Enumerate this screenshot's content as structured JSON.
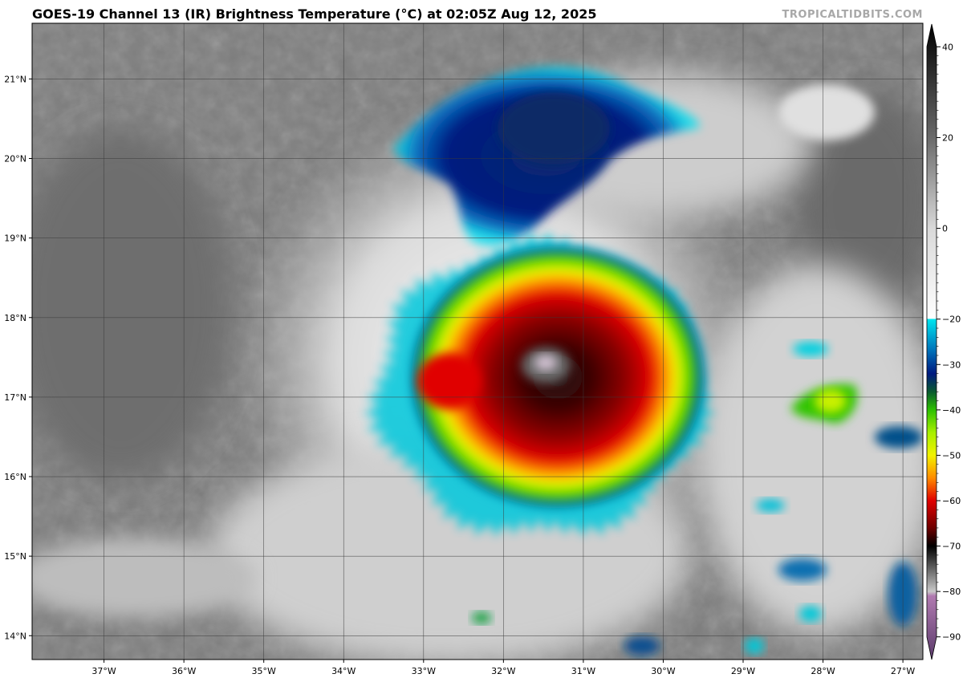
{
  "header": {
    "title": "GOES-19 Channel 13 (IR) Brightness Temperature (°C) at 02:05Z Aug 12, 2025",
    "credit": "TROPICALTIDBITS.COM"
  },
  "map": {
    "lon_range": [
      -37.9,
      -26.75
    ],
    "lat_range": [
      13.7,
      21.7
    ],
    "lon_ticks": [
      {
        "value": -37,
        "label": "37°W"
      },
      {
        "value": -36,
        "label": "36°W"
      },
      {
        "value": -35,
        "label": "35°W"
      },
      {
        "value": -34,
        "label": "34°W"
      },
      {
        "value": -33,
        "label": "33°W"
      },
      {
        "value": -32,
        "label": "32°W"
      },
      {
        "value": -31,
        "label": "31°W"
      },
      {
        "value": -30,
        "label": "30°W"
      },
      {
        "value": -29,
        "label": "29°W"
      },
      {
        "value": -28,
        "label": "28°W"
      },
      {
        "value": -27,
        "label": "27°W"
      }
    ],
    "lat_ticks": [
      {
        "value": 21,
        "label": "21°N"
      },
      {
        "value": 20,
        "label": "20°N"
      },
      {
        "value": 19,
        "label": "19°N"
      },
      {
        "value": 18,
        "label": "18°N"
      },
      {
        "value": 17,
        "label": "17°N"
      },
      {
        "value": 16,
        "label": "16°N"
      },
      {
        "value": 15,
        "label": "15°N"
      },
      {
        "value": 14,
        "label": "14°N"
      }
    ],
    "grid": true,
    "storm_center": {
      "lon": -31.4,
      "lat": 17.3
    }
  },
  "colorbar": {
    "range": [
      -95,
      45
    ],
    "ticks": [
      {
        "value": 40,
        "label": "40"
      },
      {
        "value": 20,
        "label": "20"
      },
      {
        "value": 0,
        "label": "0"
      },
      {
        "value": -20,
        "label": "−20"
      },
      {
        "value": -30,
        "label": "−30"
      },
      {
        "value": -40,
        "label": "−40"
      },
      {
        "value": -50,
        "label": "−50"
      },
      {
        "value": -60,
        "label": "−60"
      },
      {
        "value": -70,
        "label": "−70"
      },
      {
        "value": -80,
        "label": "−80"
      },
      {
        "value": -90,
        "label": "−90"
      }
    ],
    "stops": [
      {
        "value": 45,
        "color": "#000000"
      },
      {
        "value": 20,
        "color": "#6a6a6a"
      },
      {
        "value": 0,
        "color": "#d9d9d9"
      },
      {
        "value": -19.9,
        "color": "#ffffff"
      },
      {
        "value": -20,
        "color": "#00e6f0"
      },
      {
        "value": -27,
        "color": "#0070b8"
      },
      {
        "value": -32,
        "color": "#001a80"
      },
      {
        "value": -36,
        "color": "#0a5a30"
      },
      {
        "value": -40,
        "color": "#2cc000"
      },
      {
        "value": -45,
        "color": "#a8f000"
      },
      {
        "value": -50,
        "color": "#f2f200"
      },
      {
        "value": -55,
        "color": "#ff8c00"
      },
      {
        "value": -60,
        "color": "#e00000"
      },
      {
        "value": -66,
        "color": "#6e0000"
      },
      {
        "value": -70,
        "color": "#000000"
      },
      {
        "value": -80,
        "color": "#c8c8c8"
      },
      {
        "value": -81,
        "color": "#b07ab0"
      },
      {
        "value": -95,
        "color": "#5a3a6a"
      }
    ]
  }
}
